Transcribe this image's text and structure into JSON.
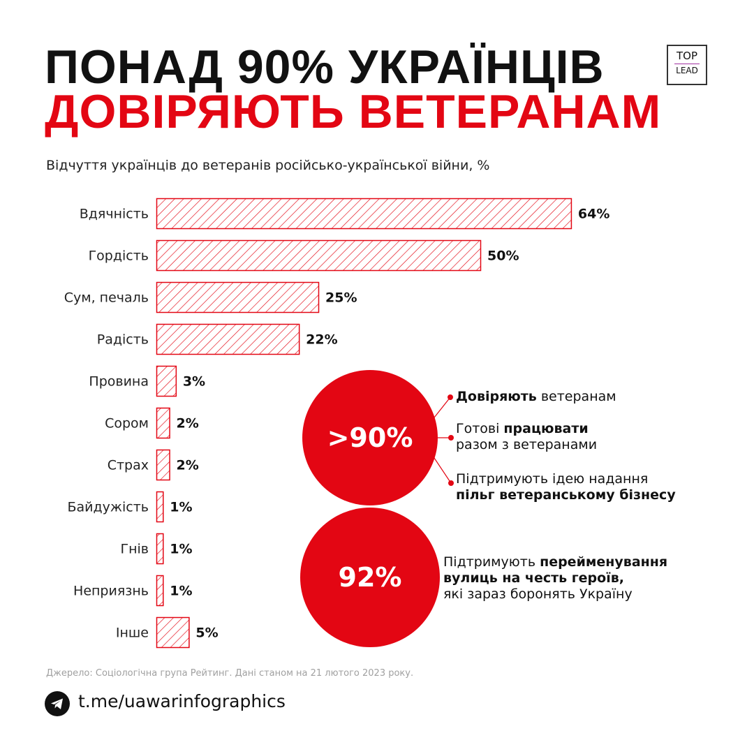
{
  "header": {
    "title_line1": "ПОНАД 90% УКРАЇНЦІВ",
    "title_line2": "ДОВІРЯЮТЬ ВЕТЕРАНАМ",
    "logo_top": "TOP",
    "logo_bottom": "LEAD"
  },
  "colors": {
    "accent": "#e30613",
    "text": "#111111",
    "source": "#a0a0a0"
  },
  "chart_data": {
    "type": "bar",
    "orientation": "horizontal",
    "title": "Відчуття українців до ветеранів російсько-української війни, %",
    "categories": [
      "Вдячність",
      "Гордість",
      "Сум, печаль",
      "Радість",
      "Провина",
      "Сором",
      "Страх",
      "Байдужість",
      "Гнів",
      "Неприязнь",
      "Інше"
    ],
    "values": [
      64,
      50,
      25,
      22,
      3,
      2,
      2,
      1,
      1,
      1,
      5
    ],
    "value_labels": [
      "64%",
      "50%",
      "25%",
      "22%",
      "3%",
      "2%",
      "2%",
      "1%",
      "1%",
      "1%",
      "5%"
    ],
    "bar_style": "red hatched outline",
    "grid": false
  },
  "callouts": {
    "circle1": ">90%",
    "circle1_items": [
      {
        "bold": "Довіряють",
        "rest": " ветеранам"
      },
      {
        "pre": "Готові ",
        "bold": "працювати",
        "line2": "разом з ветеранами"
      },
      {
        "pre": "Підтримують ідею надання",
        "bold2": "пільг ветеранському бізнесу"
      }
    ],
    "circle2": "92%",
    "circle2_text": {
      "pre": "Підтримують ",
      "bold": "перейменування",
      "bold_line2": "вулиць на честь героїв,",
      "line3": "які зараз боронять Україну"
    }
  },
  "footer": {
    "source": "Джерело: Соціологічна група Рейтинг. Дані станом на 21 лютого 2023 року.",
    "icon": "telegram-icon",
    "link": "t.me/uawarinfographics"
  }
}
